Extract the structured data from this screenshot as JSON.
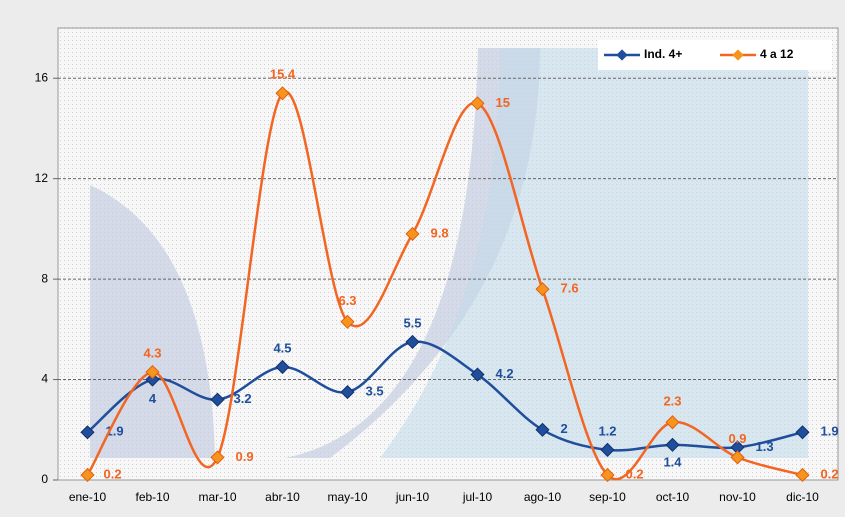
{
  "chart_data": {
    "type": "line",
    "categories": [
      "ene-10",
      "feb-10",
      "mar-10",
      "abr-10",
      "may-10",
      "jun-10",
      "jul-10",
      "ago-10",
      "sep-10",
      "oct-10",
      "nov-10",
      "dic-10"
    ],
    "series": [
      {
        "name": "Ind. 4+",
        "color": "#1f4e9c",
        "values": [
          1.9,
          4,
          3.2,
          4.5,
          3.5,
          5.5,
          4.2,
          2,
          1.2,
          1.4,
          1.3,
          1.9
        ]
      },
      {
        "name": "4 a 12",
        "color": "#f26522",
        "values": [
          0.2,
          4.3,
          0.9,
          15.4,
          6.3,
          9.8,
          15,
          7.6,
          0.2,
          2.3,
          0.9,
          0.2
        ]
      }
    ],
    "ylim": [
      0,
      18
    ],
    "yticks": [
      0,
      4,
      8,
      12,
      16
    ],
    "grid": true,
    "legend": "top-right"
  }
}
